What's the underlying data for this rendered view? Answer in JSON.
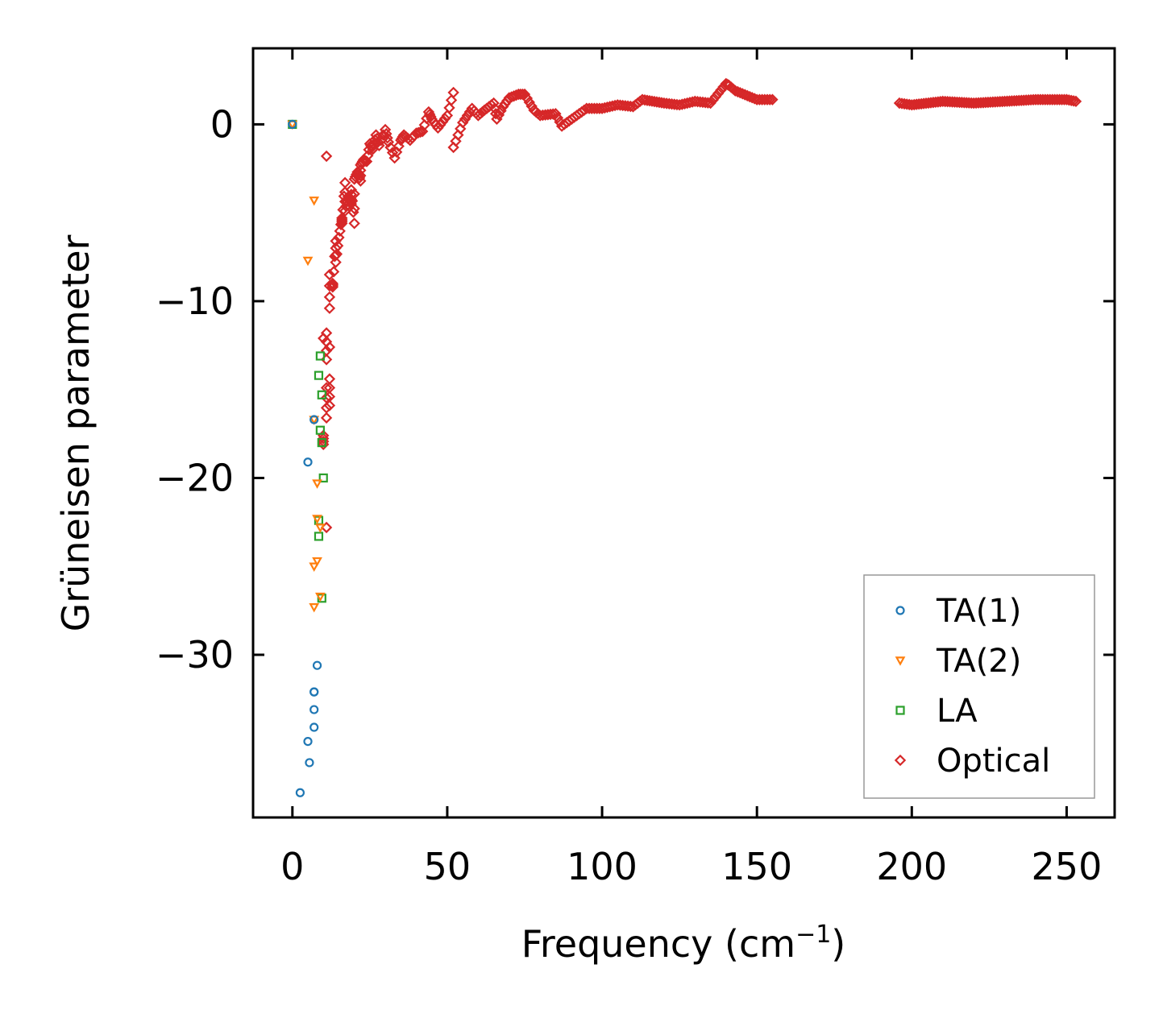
{
  "chart_data": {
    "type": "scatter",
    "title": "",
    "xlabel": "Frequency (cm",
    "xlabel_superscript": "−1",
    "xlabel_suffix": ")",
    "ylabel": "Grüneisen parameter",
    "xlim": [
      -12.7,
      265.5
    ],
    "ylim": [
      -39.2,
      4.3
    ],
    "xticks": [
      0,
      50,
      100,
      150,
      200,
      250
    ],
    "xtick_labels": [
      "0",
      "50",
      "100",
      "150",
      "200",
      "250"
    ],
    "yticks": [
      0,
      -10,
      -20,
      -30
    ],
    "ytick_labels": [
      "0",
      "−10",
      "−20",
      "−30"
    ],
    "grid": false,
    "legend_position": "lower-right",
    "colors": {
      "TA(1)": "#1f77b4",
      "TA(2)": "#ff7f0e",
      "LA": "#2ca02c",
      "Optical": "#d62728"
    },
    "series": [
      {
        "name": "TA(1)",
        "marker": "circle",
        "x": [
          0,
          7,
          5,
          8,
          7,
          7,
          7,
          7,
          5,
          5.5,
          2.5
        ],
        "y": [
          0,
          -16.7,
          -19.1,
          -30.6,
          -32.1,
          -32.1,
          -33.1,
          -34.1,
          -34.9,
          -36.1,
          -37.8
        ]
      },
      {
        "name": "TA(2)",
        "marker": "triangle-down",
        "x": [
          0,
          7,
          5,
          7,
          8,
          8,
          9,
          8,
          7,
          9,
          7
        ],
        "y": [
          0,
          -4.3,
          -7.7,
          -16.7,
          -20.3,
          -22.3,
          -22.8,
          -24.7,
          -25.0,
          -26.7,
          -27.3
        ],
        "_note": "approximate"
      },
      {
        "name": "LA",
        "marker": "square",
        "x": [
          0,
          9,
          8.5,
          9.5,
          9,
          9.5,
          10,
          8.5,
          8.5,
          9.5
        ],
        "y": [
          0,
          -13.1,
          -14.2,
          -15.3,
          -17.3,
          -18.0,
          -20.0,
          -22.4,
          -23.3,
          -26.8
        ]
      },
      {
        "name": "Optical",
        "marker": "diamond",
        "x": [
          11,
          17,
          20,
          24,
          28,
          33,
          38,
          42,
          47,
          52,
          58,
          65,
          70,
          75,
          80,
          87,
          95,
          105,
          113,
          120,
          130,
          140,
          143,
          150,
          155,
          196,
          200,
          210,
          220,
          230,
          240,
          250,
          253,
          12,
          14,
          16,
          19,
          22,
          26,
          31,
          36,
          40,
          45,
          50,
          55,
          62,
          68,
          73,
          10,
          11,
          12,
          13,
          14,
          15,
          16,
          17,
          18,
          19,
          20,
          21,
          22,
          23,
          25,
          27,
          30,
          35,
          44,
          52,
          60,
          66,
          78,
          85,
          100,
          110,
          125,
          135,
          141,
          11,
          12,
          12,
          11,
          10,
          11,
          12,
          13,
          11,
          10
        ],
        "y": [
          -1.8,
          -3.3,
          -5.6,
          -2.1,
          -1.2,
          -1.9,
          -0.9,
          -0.4,
          -0.2,
          1.8,
          0.9,
          1.2,
          1.5,
          1.7,
          0.5,
          -0.1,
          0.9,
          1.1,
          1.4,
          1.2,
          1.3,
          2.3,
          1.9,
          1.4,
          1.4,
          1.2,
          1.1,
          1.3,
          1.2,
          1.3,
          1.4,
          1.4,
          1.3,
          -8.5,
          -6.6,
          -5.3,
          -4.5,
          -3.2,
          -1.4,
          -1.0,
          -0.6,
          -0.5,
          0.3,
          0.5,
          0.1,
          0.8,
          1.0,
          1.7,
          -12.1,
          -11.8,
          -10.4,
          -9.0,
          -7.8,
          -6.4,
          -5.6,
          -4.9,
          -4.1,
          -3.7,
          -3.1,
          -2.7,
          -2.3,
          -2.0,
          -1.1,
          -0.6,
          -0.3,
          -0.9,
          0.7,
          -1.3,
          0.5,
          0.3,
          0.8,
          0.6,
          0.9,
          1.0,
          1.1,
          1.2,
          2.2,
          -13.3,
          -14.4,
          -15.9,
          -16.6,
          -18.1,
          -14.9,
          -12.6,
          -9.2,
          -22.8,
          -17.6
        ]
      }
    ]
  }
}
